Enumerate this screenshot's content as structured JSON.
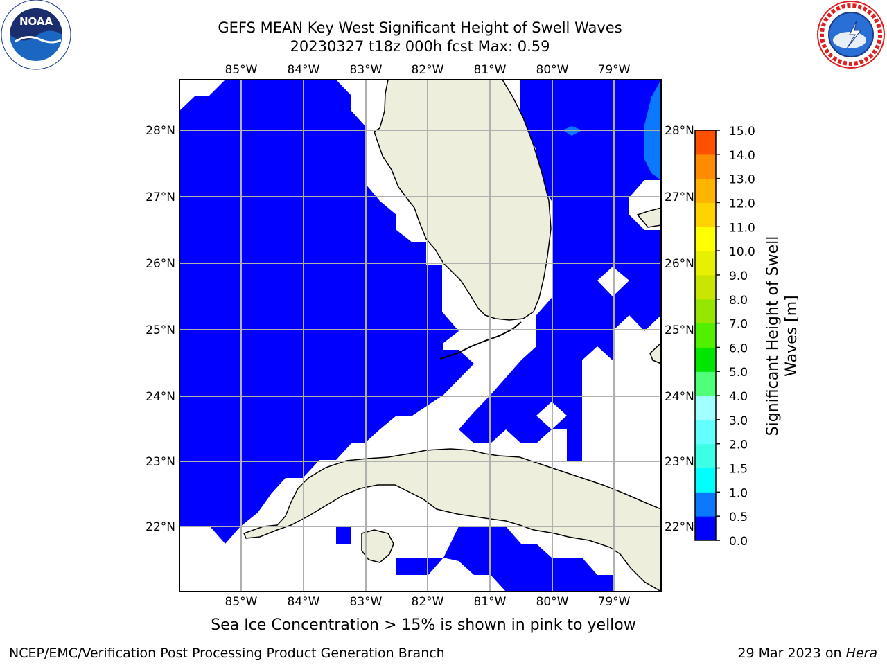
{
  "header": {
    "title_line1": "GEFS MEAN Key West Significant Height of Swell Waves",
    "title_line2": "20230327 t18z 000h fcst   Max: 0.59"
  },
  "logos": {
    "left": {
      "name": "noaa-logo",
      "text": "NOAA",
      "ring_text": "NATIONAL OCEANIC AND ATMOSPHERIC ADMINISTRATION · U.S. DEPARTMENT OF COMMERCE"
    },
    "right": {
      "name": "nws-logo",
      "ring_text": "NATIONAL WEATHER SERVICE"
    }
  },
  "map": {
    "lon_labels": [
      "85°W",
      "84°W",
      "83°W",
      "82°W",
      "81°W",
      "80°W",
      "79°W"
    ],
    "lat_labels": [
      "28°N",
      "27°N",
      "26°N",
      "25°N",
      "24°N",
      "23°N",
      "22°N"
    ],
    "colors": {
      "wave_low": "#0000ff",
      "wave_mid": "#0a64ff",
      "land": "#eeeedd",
      "grid": "#b0b0b0"
    }
  },
  "colorbar": {
    "label_line1": "Significant Height of Swell",
    "label_line2": "Waves [m]",
    "ticks": [
      "0.0",
      "0.5",
      "1.0",
      "1.5",
      "2.0",
      "3.0",
      "4.0",
      "5.0",
      "6.0",
      "7.0",
      "8.0",
      "9.0",
      "10.0",
      "11.0",
      "12.0",
      "13.0",
      "14.0",
      "15.0"
    ],
    "colors": [
      "#0000ff",
      "#0a78ff",
      "#00ffff",
      "#3cffe6",
      "#64ffff",
      "#a0ffff",
      "#50ff78",
      "#00e600",
      "#50f000",
      "#96e600",
      "#c8e600",
      "#e6f000",
      "#ffff00",
      "#ffd200",
      "#ffb400",
      "#ff8c00",
      "#ff5000",
      "#ff2800",
      "#ff0000"
    ]
  },
  "footer": {
    "ice_note": "Sea Ice Concentration > 15% is shown in pink to yellow",
    "left": "NCEP/EMC/Verification Post Processing Product Generation Branch",
    "right_prefix": "29 Mar 2023 on ",
    "right_host": "Hera"
  }
}
